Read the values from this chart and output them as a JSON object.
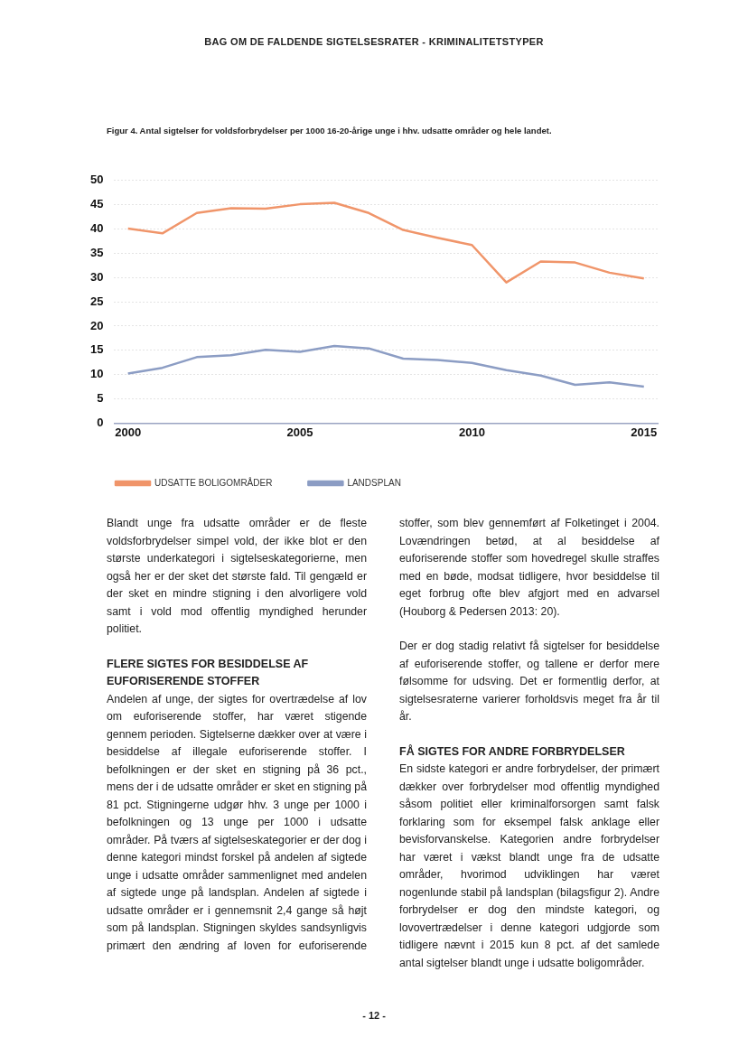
{
  "chart_data": {
    "type": "line",
    "title": "Figur 4. Antal sigtelser for voldsforbrydelser per 1000 16-20-årige unge i hhv. udsatte områder og hele landet.",
    "x": [
      2000,
      2001,
      2002,
      2003,
      2004,
      2005,
      2006,
      2007,
      2008,
      2009,
      2010,
      2011,
      2012,
      2013,
      2014,
      2015
    ],
    "series": [
      {
        "name": "UDSATTE BOLIGOMRÅDER",
        "color": "#f0956a",
        "values": [
          40.1,
          39.1,
          43.3,
          44.3,
          44.2,
          45.1,
          45.4,
          43.3,
          39.8,
          38.2,
          36.7,
          29.0,
          33.3,
          33.1,
          31.0,
          29.8
        ]
      },
      {
        "name": "LANDSPLAN",
        "color": "#8c9dc4",
        "values": [
          10.2,
          11.4,
          13.6,
          14.0,
          15.1,
          14.7,
          15.9,
          15.4,
          13.3,
          13.0,
          12.4,
          10.9,
          9.8,
          7.9,
          8.4,
          7.5
        ]
      }
    ],
    "xlim": [
      1999.6,
      2015.4
    ],
    "xticks": [
      2000,
      2005,
      2010,
      2015
    ],
    "ylim": [
      0,
      50
    ],
    "yticks": [
      0,
      5,
      10,
      15,
      20,
      25,
      30,
      35,
      40,
      45,
      50
    ],
    "grid": "y",
    "legend": "bottom left",
    "marker": "none",
    "line_style": "solid",
    "annotations": [
      "BAG OM DE FALDENDE SIGTELSESRATER - KRIMINALITETSTYPER",
      "Blandt unge fra udsatte områder er de fleste voldsforbrydelser simpel vold, der ikke blot er den største underkategori i sigtelseskategorierne, men også her er der sket det største fald. Til gengæld er der sket en mindre stigning i den alvorligere vold samt i vold mod offentlig myndighed herunder politiet.",
      "FLERE SIGTES FOR BESIDDELSE AF EUFORISERENDE STOFFER",
      "Andelen af unge, der sigtes for overtrædelse af lov om euforiserende stoffer, har været stigende gennem perioden. Sigtelserne dækker over at være i besiddelse af illegale euforiserende stoffer. I befolkningen er der sket en stigning på 36 pct., mens der i de udsatte områder er sket en stigning på 81 pct. Stigningerne udgør hhv. 3 unge per 1000 i befolkningen og 13 unge per 1000 i udsatte områder. På tværs af sigtelseskategorier er der dog i denne kategori mindst forskel på andelen af sigtede unge i udsatte områder sammenlignet med andelen af sigtede unge på landsplan. Andelen af sigtede i udsatte områder er i gennemsnit 2,4 gange så højt som på landsplan. Stigningen skyldes sandsynligvis primært den ændring af loven for euforiserende stoffer, som blev gennemført af Folketinget i 2004. Lovændringen betød, at al besiddelse af euforiserende stoffer som hovedregel skulle straffes med en bøde, modsat tidligere, hvor besiddelse til eget forbrug ofte blev afgjort med en advarsel (Houborg & Pedersen 2013: 20).",
      "Der er dog stadig relativt få sigtelser for besiddelse af euforiserende stoffer, og tallene er derfor mere følsomme for udsving. Det er formentlig derfor, at sigtelsesraterne varierer forholdsvis meget fra år til år.",
      "FÅ SIGTES FOR ANDRE FORBRYDELSER",
      "En sidste kategori er andre forbrydelser, der primært dækker over forbrydelser mod offentlig myndighed såsom politiet eller kriminalforsorgen samt falsk forklaring som for eksempel falsk anklage eller bevisforvanskelse. Kategorien andre forbrydelser har været i vækst blandt unge fra de udsatte områder, hvorimod udviklingen har været nogenlunde stabil på landsplan (bilagsfigur 2). Andre forbrydelser er dog den mindste kategori, og lovovertrædelser i denne kategori udgjorde som tidligere nævnt i 2015 kun 8 pct. af det samlede antal sigtelser blandt unge i udsatte boligområder.",
      "- 12 -"
    ]
  }
}
